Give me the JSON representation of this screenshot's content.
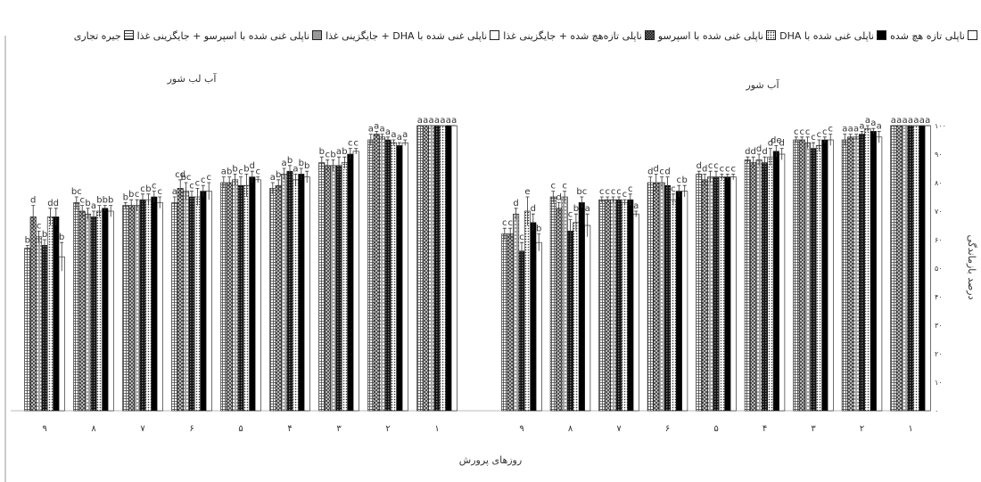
{
  "chart_data": {
    "type": "bar",
    "x_label": "روزهای پرورش",
    "y_label": "درصد بازماندگی",
    "ylim": [
      0,
      100
    ],
    "yticks": [
      {
        "value": 0,
        "label": "۰"
      },
      {
        "value": 10,
        "label": "۱۰"
      },
      {
        "value": 20,
        "label": "۲۰"
      },
      {
        "value": 30,
        "label": "۳۰"
      },
      {
        "value": 40,
        "label": "۴۰"
      },
      {
        "value": 50,
        "label": "۵۰"
      },
      {
        "value": 60,
        "label": "۶۰"
      },
      {
        "value": 70,
        "label": "۷۰"
      },
      {
        "value": 80,
        "label": "۸۰"
      },
      {
        "value": 90,
        "label": "۹۰"
      },
      {
        "value": 100,
        "label": "۱۰۰"
      }
    ],
    "series": [
      {
        "name": "ناپلی تازه هچ شده",
        "fill": "white"
      },
      {
        "name": "ناپلی غنی شده با DHA",
        "fill": "black"
      },
      {
        "name": "ناپلی غنی شده با اسپرسو",
        "fill": "dots"
      },
      {
        "name": "ناپلی تازه‌هچ شده + جایگزینی غذا",
        "fill": "checker"
      },
      {
        "name": "ناپلی غنی شده با DHA + جایگزینی غذا",
        "fill": "box"
      },
      {
        "name": "ناپلی غنی شده با اسپرسو + جایگزینی غذا",
        "fill": "cross"
      },
      {
        "name": "جیره تجاری",
        "fill": "grid"
      }
    ],
    "panels": [
      {
        "title": "آب لب شور",
        "categories": [
          "۹",
          "۸",
          "۷",
          "۶",
          "۵",
          "۴",
          "۳",
          "۲",
          "۱"
        ],
        "series": [
          {
            "values": [
              54,
              70,
              73,
              77,
              81,
              82,
              91,
              94,
              100
            ],
            "errors": [
              5,
              2,
              2,
              3,
              1,
              2,
              1,
              1,
              0
            ],
            "letters": [
              "b",
              "b",
              "c",
              "c",
              "c",
              "b",
              "c",
              "a",
              "a"
            ]
          },
          {
            "values": [
              68,
              71,
              75,
              77,
              82,
              83,
              90,
              93,
              100
            ],
            "errors": [
              3,
              1,
              2,
              2,
              2,
              2,
              2,
              1,
              0
            ],
            "letters": [
              "d",
              "b",
              "c",
              "c",
              "d",
              "b",
              "c",
              "a",
              "a"
            ]
          },
          {
            "values": [
              68,
              70,
              74,
              75,
              79,
              81,
              87,
              94,
              100
            ],
            "errors": [
              3,
              2,
              2,
              3,
              4,
              2,
              2,
              1,
              0
            ],
            "letters": [
              "d",
              "b",
              "b",
              "c",
              "b",
              "a",
              "b",
              "a",
              "a"
            ]
          },
          {
            "values": [
              58,
              68,
              74,
              75,
              79,
              84,
              86,
              95,
              100
            ],
            "errors": [
              2,
              2,
              2,
              2,
              3,
              2,
              3,
              1,
              0
            ],
            "letters": [
              "b",
              "a",
              "c",
              "c",
              "c",
              "b",
              "a",
              "a",
              "a"
            ]
          },
          {
            "values": [
              61,
              69,
              72,
              77,
              81,
              83,
              86,
              96,
              100
            ],
            "errors": [
              2,
              2,
              2,
              3,
              2,
              2,
              2,
              1,
              0
            ],
            "letters": [
              "c",
              "b",
              "c",
              "bc",
              "b",
              "a",
              "b",
              "a",
              "a"
            ]
          },
          {
            "values": [
              68,
              70,
              72,
              78,
              80,
              79,
              86,
              97,
              100
            ],
            "errors": [
              4,
              2,
              2,
              3,
              2,
              2,
              2,
              1,
              0
            ],
            "letters": [
              "d",
              "c",
              "b",
              "cd",
              "b",
              "b",
              "c",
              "a",
              "a"
            ]
          },
          {
            "values": [
              57,
              73,
              72,
              73,
              80,
              78,
              87,
              95,
              100
            ],
            "errors": [
              1,
              2,
              1,
              2,
              2,
              2,
              2,
              2,
              0
            ],
            "letters": [
              "b",
              "bc",
              "b",
              "a",
              "a",
              "a",
              "b",
              "a",
              "a"
            ]
          }
        ]
      },
      {
        "title": "آب شور",
        "categories": [
          "۹",
          "۸",
          "۷",
          "۶",
          "۵",
          "۴",
          "۳",
          "۲",
          "۱"
        ],
        "series": [
          {
            "values": [
              59,
              65,
              69,
              77,
              82,
              90,
              95,
              96,
              100
            ],
            "errors": [
              3,
              4,
              1,
              2,
              1,
              2,
              2,
              2,
              0
            ],
            "letters": [
              "b",
              "a",
              "a",
              "b",
              "c",
              "d",
              "c",
              "a",
              "a"
            ]
          },
          {
            "values": [
              66,
              73,
              74,
              77,
              82,
              91,
              95,
              98,
              100
            ],
            "errors": [
              3,
              2,
              2,
              2,
              1,
              2,
              1,
              1,
              0
            ],
            "letters": [
              "d",
              "bc",
              "c",
              "c",
              "c",
              "de",
              "c",
              "a",
              "a"
            ]
          },
          {
            "values": [
              70,
              66,
              73,
              74,
              82,
              89,
              93,
              99,
              100
            ],
            "errors": [
              5,
              3,
              1,
              2,
              1,
              3,
              2,
              1,
              0
            ],
            "letters": [
              "e",
              "b",
              "c",
              "c",
              "c",
              "d",
              "c",
              "a",
              "a"
            ]
          },
          {
            "values": [
              56,
              63,
              74,
              79,
              82,
              87,
              92,
              97,
              100
            ],
            "errors": [
              3,
              4,
              1,
              3,
              2,
              2,
              2,
              1,
              0
            ],
            "letters": [
              "c",
              "c",
              "c",
              "d",
              "c",
              "d",
              "c",
              "a",
              "a"
            ]
          },
          {
            "values": [
              69,
              75,
              74,
              80,
              82,
              88,
              94,
              96,
              100
            ],
            "errors": [
              2,
              2,
              1,
              2,
              2,
              2,
              2,
              1,
              0
            ],
            "letters": [
              "d",
              "c",
              "c",
              "c",
              "c",
              "d",
              "c",
              "a",
              "a"
            ]
          },
          {
            "values": [
              62,
              71,
              74,
              80,
              81,
              87,
              95,
              96,
              100
            ],
            "errors": [
              2,
              2,
              1,
              3,
              2,
              2,
              1,
              1,
              0
            ],
            "letters": [
              "c",
              "d",
              "c",
              "d",
              "d",
              "d",
              "c",
              "a",
              "a"
            ]
          },
          {
            "values": [
              62,
              75,
              74,
              80,
              83,
              88,
              95,
              95,
              100
            ],
            "errors": [
              2,
              2,
              1,
              2,
              1,
              1,
              1,
              2,
              0
            ],
            "letters": [
              "c",
              "c",
              "c",
              "d",
              "d",
              "d",
              "c",
              "a",
              "a"
            ]
          }
        ]
      }
    ]
  }
}
